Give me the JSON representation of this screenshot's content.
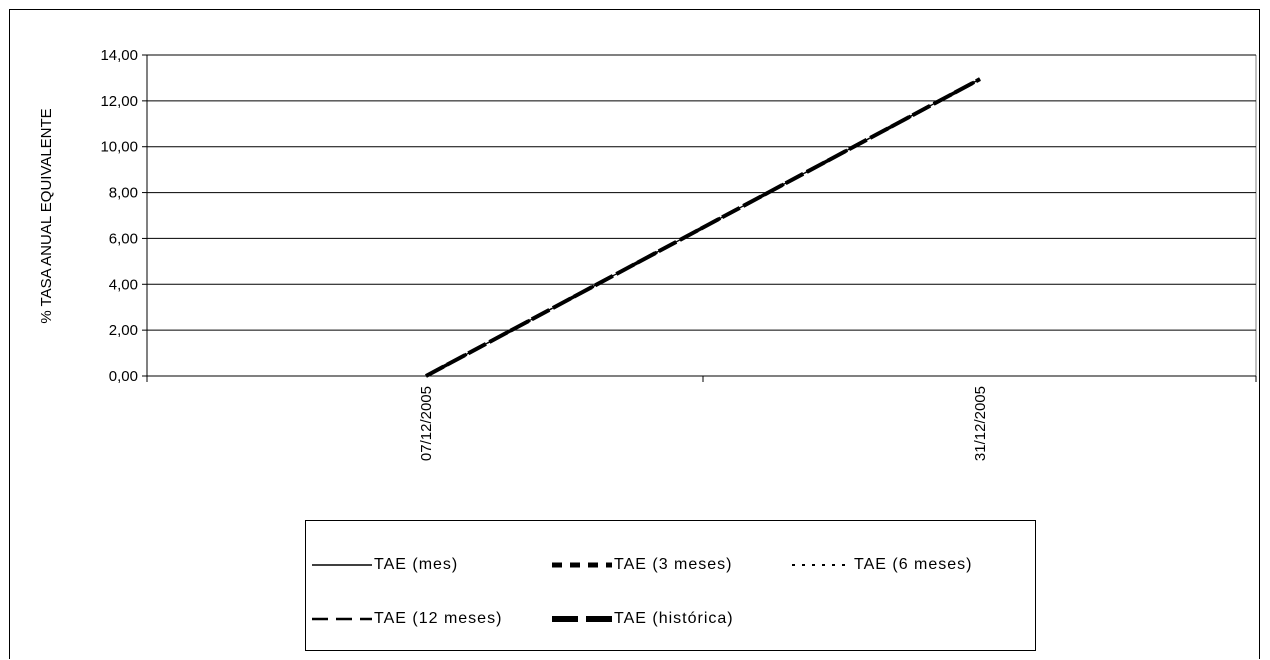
{
  "chart_data": {
    "type": "line",
    "title": "",
    "ylabel": "% TASA ANUAL EQUIVALENTE",
    "xlabel": "",
    "ylim": [
      0,
      14
    ],
    "y_ticks": [
      "0,00",
      "2,00",
      "4,00",
      "6,00",
      "8,00",
      "10,00",
      "12,00",
      "14,00"
    ],
    "x_tick_labels": [
      "07/12/2005",
      "31/12/2005"
    ],
    "x": [
      "07/12/2005",
      "31/12/2005"
    ],
    "grid": true,
    "legend_position": "bottom",
    "series": [
      {
        "name": "TAE (mes)",
        "values": [
          0.0,
          12.95
        ],
        "style": "solid-thin"
      },
      {
        "name": "TAE (3 meses)",
        "values": [
          0.0,
          12.95
        ],
        "style": "dashed-thick"
      },
      {
        "name": "TAE (6 meses)",
        "values": [
          0.0,
          12.95
        ],
        "style": "dotted"
      },
      {
        "name": "TAE (12 meses)",
        "values": [
          0.0,
          12.95
        ],
        "style": "long-dash"
      },
      {
        "name": "TAE (histórica)",
        "values": [
          0.0,
          12.95
        ],
        "style": "solid-thick-dash"
      }
    ],
    "line_color": "#000000"
  }
}
